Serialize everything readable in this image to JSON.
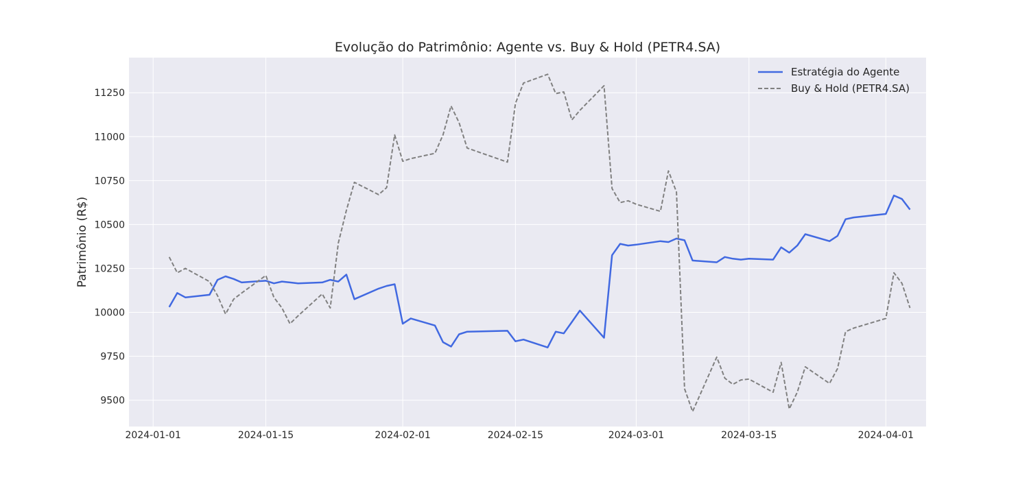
{
  "chart_data": {
    "type": "line",
    "title": "Evolução do Patrimônio: Agente vs. Buy & Hold (PETR4.SA)",
    "xlabel": "",
    "ylabel": "Patrimônio (R$)",
    "xlim": [
      "2023-12-29",
      "2024-04-06"
    ],
    "ylim": [
      9350,
      11450
    ],
    "yticks": [
      9500,
      9750,
      10000,
      10250,
      10500,
      10750,
      11000,
      11250
    ],
    "xticks": [
      "2024-01-01",
      "2024-01-15",
      "2024-02-01",
      "2024-02-15",
      "2024-03-01",
      "2024-03-15",
      "2024-04-01"
    ],
    "grid": true,
    "legend_position": "top-right",
    "series": [
      {
        "name": "Estratégia do Agente",
        "color": "#4169e1",
        "linestyle": "solid",
        "x": [
          "2024-01-03",
          "2024-01-04",
          "2024-01-05",
          "2024-01-08",
          "2024-01-09",
          "2024-01-10",
          "2024-01-11",
          "2024-01-12",
          "2024-01-15",
          "2024-01-16",
          "2024-01-17",
          "2024-01-18",
          "2024-01-19",
          "2024-01-22",
          "2024-01-23",
          "2024-01-24",
          "2024-01-25",
          "2024-01-26",
          "2024-01-29",
          "2024-01-30",
          "2024-01-31",
          "2024-02-01",
          "2024-02-02",
          "2024-02-05",
          "2024-02-06",
          "2024-02-07",
          "2024-02-08",
          "2024-02-09",
          "2024-02-14",
          "2024-02-15",
          "2024-02-16",
          "2024-02-19",
          "2024-02-20",
          "2024-02-21",
          "2024-02-22",
          "2024-02-23",
          "2024-02-26",
          "2024-02-27",
          "2024-02-28",
          "2024-02-29",
          "2024-03-01",
          "2024-03-04",
          "2024-03-05",
          "2024-03-06",
          "2024-03-07",
          "2024-03-08",
          "2024-03-11",
          "2024-03-12",
          "2024-03-13",
          "2024-03-14",
          "2024-03-15",
          "2024-03-18",
          "2024-03-19",
          "2024-03-20",
          "2024-03-21",
          "2024-03-22",
          "2024-03-25",
          "2024-03-26",
          "2024-03-27",
          "2024-03-28",
          "2024-04-01",
          "2024-04-02",
          "2024-04-03",
          "2024-04-04"
        ],
        "values": [
          10030,
          10110,
          10085,
          10100,
          10185,
          10205,
          10190,
          10170,
          10180,
          10165,
          10175,
          10170,
          10165,
          10170,
          10185,
          10175,
          10215,
          10075,
          10135,
          10150,
          10160,
          9935,
          9965,
          9925,
          9830,
          9805,
          9875,
          9890,
          9895,
          9835,
          9845,
          9800,
          9890,
          9880,
          9945,
          10010,
          9855,
          10325,
          10390,
          10380,
          10385,
          10405,
          10400,
          10420,
          10410,
          10295,
          10285,
          10315,
          10305,
          10300,
          10305,
          10300,
          10370,
          10340,
          10380,
          10445,
          10405,
          10435,
          10530,
          10540,
          10560,
          10665,
          10645,
          10585
        ]
      },
      {
        "name": "Buy & Hold (PETR4.SA)",
        "color": "#808080",
        "linestyle": "dashed",
        "x": [
          "2024-01-03",
          "2024-01-04",
          "2024-01-05",
          "2024-01-08",
          "2024-01-09",
          "2024-01-10",
          "2024-01-11",
          "2024-01-12",
          "2024-01-15",
          "2024-01-16",
          "2024-01-17",
          "2024-01-18",
          "2024-01-19",
          "2024-01-22",
          "2024-01-23",
          "2024-01-24",
          "2024-01-25",
          "2024-01-26",
          "2024-01-29",
          "2024-01-30",
          "2024-01-31",
          "2024-02-01",
          "2024-02-02",
          "2024-02-05",
          "2024-02-06",
          "2024-02-07",
          "2024-02-08",
          "2024-02-09",
          "2024-02-14",
          "2024-02-15",
          "2024-02-16",
          "2024-02-19",
          "2024-02-20",
          "2024-02-21",
          "2024-02-22",
          "2024-02-23",
          "2024-02-26",
          "2024-02-27",
          "2024-02-28",
          "2024-02-29",
          "2024-03-01",
          "2024-03-04",
          "2024-03-05",
          "2024-03-06",
          "2024-03-07",
          "2024-03-08",
          "2024-03-11",
          "2024-03-12",
          "2024-03-13",
          "2024-03-14",
          "2024-03-15",
          "2024-03-18",
          "2024-03-19",
          "2024-03-20",
          "2024-03-21",
          "2024-03-22",
          "2024-03-25",
          "2024-03-26",
          "2024-03-27",
          "2024-03-28",
          "2024-04-01",
          "2024-04-02",
          "2024-04-03",
          "2024-04-04"
        ],
        "values": [
          10315,
          10225,
          10250,
          10175,
          10095,
          9990,
          10075,
          10110,
          10210,
          10085,
          10025,
          9935,
          9980,
          10105,
          10025,
          10395,
          10580,
          10740,
          10670,
          10710,
          11010,
          10860,
          10875,
          10905,
          11010,
          11175,
          11080,
          10935,
          10855,
          11190,
          11305,
          11355,
          11245,
          11255,
          11095,
          11150,
          11290,
          10705,
          10625,
          10635,
          10615,
          10575,
          10805,
          10685,
          9565,
          9435,
          9745,
          9625,
          9590,
          9615,
          9620,
          9545,
          9715,
          9450,
          9545,
          9690,
          9595,
          9680,
          9890,
          9910,
          9965,
          10225,
          10165,
          10025
        ]
      }
    ]
  }
}
